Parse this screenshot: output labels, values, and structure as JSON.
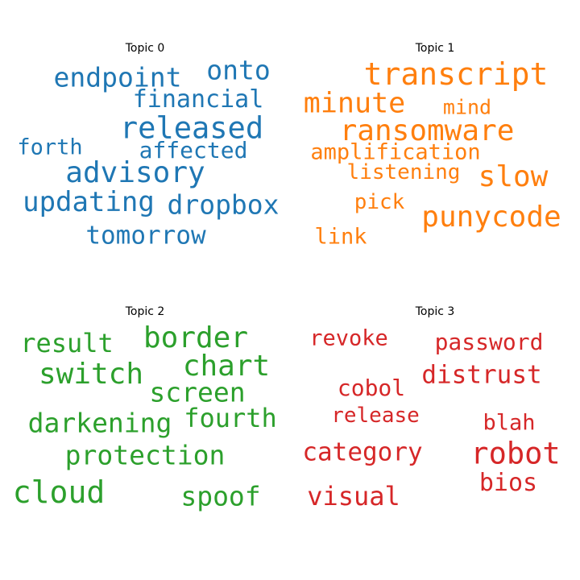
{
  "chart_data": {
    "type": "wordcloud",
    "panels": [
      {
        "title": "Topic 0",
        "color": "#1f77b4",
        "words": [
          {
            "text": "endpoint",
            "size": 33
          },
          {
            "text": "onto",
            "size": 33
          },
          {
            "text": "financial",
            "size": 30
          },
          {
            "text": "released",
            "size": 37
          },
          {
            "text": "forth",
            "size": 27
          },
          {
            "text": "affected",
            "size": 28
          },
          {
            "text": "advisory",
            "size": 36
          },
          {
            "text": "updating",
            "size": 34
          },
          {
            "text": "dropbox",
            "size": 33
          },
          {
            "text": "tomorrow",
            "size": 31
          }
        ]
      },
      {
        "title": "Topic 1",
        "color": "#ff7f0e",
        "words": [
          {
            "text": "transcript",
            "size": 38
          },
          {
            "text": "minute",
            "size": 35
          },
          {
            "text": "mind",
            "size": 25
          },
          {
            "text": "ransomware",
            "size": 36
          },
          {
            "text": "amplification",
            "size": 27
          },
          {
            "text": "listening",
            "size": 26
          },
          {
            "text": "slow",
            "size": 36
          },
          {
            "text": "pick",
            "size": 26
          },
          {
            "text": "punycode",
            "size": 36
          },
          {
            "text": "link",
            "size": 27
          }
        ]
      },
      {
        "title": "Topic 2",
        "color": "#2ca02c",
        "words": [
          {
            "text": "result",
            "size": 32
          },
          {
            "text": "border",
            "size": 36
          },
          {
            "text": "chart",
            "size": 36
          },
          {
            "text": "switch",
            "size": 36
          },
          {
            "text": "screen",
            "size": 33
          },
          {
            "text": "darkening",
            "size": 33
          },
          {
            "text": "fourth",
            "size": 32
          },
          {
            "text": "protection",
            "size": 33
          },
          {
            "text": "cloud",
            "size": 38
          },
          {
            "text": "spoof",
            "size": 33
          }
        ]
      },
      {
        "title": "Topic 3",
        "color": "#d62728",
        "words": [
          {
            "text": "revoke",
            "size": 27
          },
          {
            "text": "password",
            "size": 28
          },
          {
            "text": "distrust",
            "size": 31
          },
          {
            "text": "cobol",
            "size": 28
          },
          {
            "text": "release",
            "size": 26
          },
          {
            "text": "blah",
            "size": 27
          },
          {
            "text": "category",
            "size": 31
          },
          {
            "text": "robot",
            "size": 37
          },
          {
            "text": "bios",
            "size": 30
          },
          {
            "text": "visual",
            "size": 32
          }
        ]
      }
    ]
  }
}
